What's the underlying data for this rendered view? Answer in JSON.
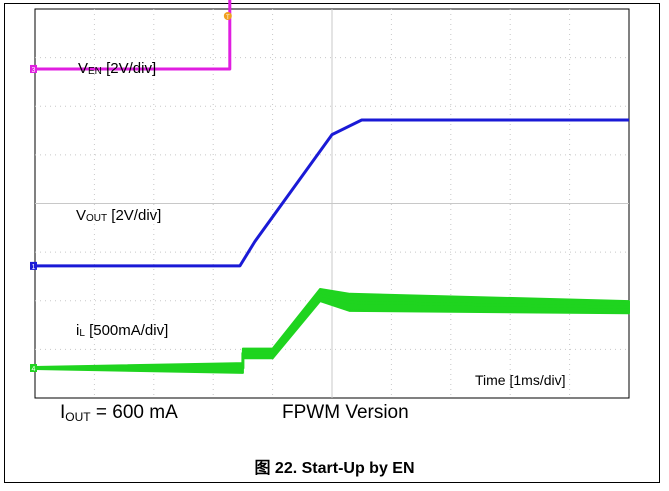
{
  "chart_data": {
    "type": "line",
    "title": "",
    "xlabel": "Time [1ms/div]",
    "x_divisions": 10,
    "y_divisions": 8,
    "grid": true,
    "x_unit": "ms",
    "series": [
      {
        "name": "VEN [2V/div]",
        "label_main": "V",
        "label_sub": "EN",
        "label_tail": " [2V/div]",
        "channel_marker": "3",
        "color": "#e01ee0",
        "zero_div": 6.15,
        "points": [
          [
            0,
            0
          ],
          [
            3.28,
            0
          ],
          [
            3.28,
            2.0
          ],
          [
            10,
            2.0
          ]
        ]
      },
      {
        "name": "VOUT [2V/div]",
        "label_main": "V",
        "label_sub": "OUT",
        "label_tail": " [2V/div]",
        "channel_marker": "1",
        "color": "#1a1ad6",
        "zero_div": 2.1,
        "points": [
          [
            0,
            0
          ],
          [
            3.45,
            0
          ],
          [
            3.7,
            0.5
          ],
          [
            5.0,
            2.7
          ],
          [
            5.5,
            3.0
          ],
          [
            10,
            3.0
          ]
        ]
      },
      {
        "name": "iL [500mA/div]",
        "label_main": "i",
        "label_sub": "L",
        "label_tail": " [500mA/div]",
        "channel_marker": "4",
        "color": "#1fd41f",
        "zero_div": 0.0,
        "points": [
          [
            0,
            0
          ],
          [
            3.5,
            0
          ],
          [
            3.5,
            0.3
          ],
          [
            4.0,
            0.3
          ],
          [
            4.8,
            1.5
          ],
          [
            5.3,
            1.35
          ],
          [
            10,
            1.25
          ]
        ],
        "ripple_points": [
          [
            3.5,
            0.2
          ],
          [
            4.0,
            0.2
          ],
          [
            4.6,
            0.25
          ],
          [
            5.0,
            0.35
          ],
          [
            10,
            0.25
          ]
        ]
      }
    ],
    "trigger_marker": "T",
    "notes": [
      {
        "main": "I",
        "sub": "OUT",
        "tail": " = 600 mA"
      },
      {
        "main": "FPWM Version",
        "sub": "",
        "tail": ""
      }
    ]
  },
  "caption": {
    "cjk": "图",
    "text": " 22. Start-Up by EN"
  }
}
